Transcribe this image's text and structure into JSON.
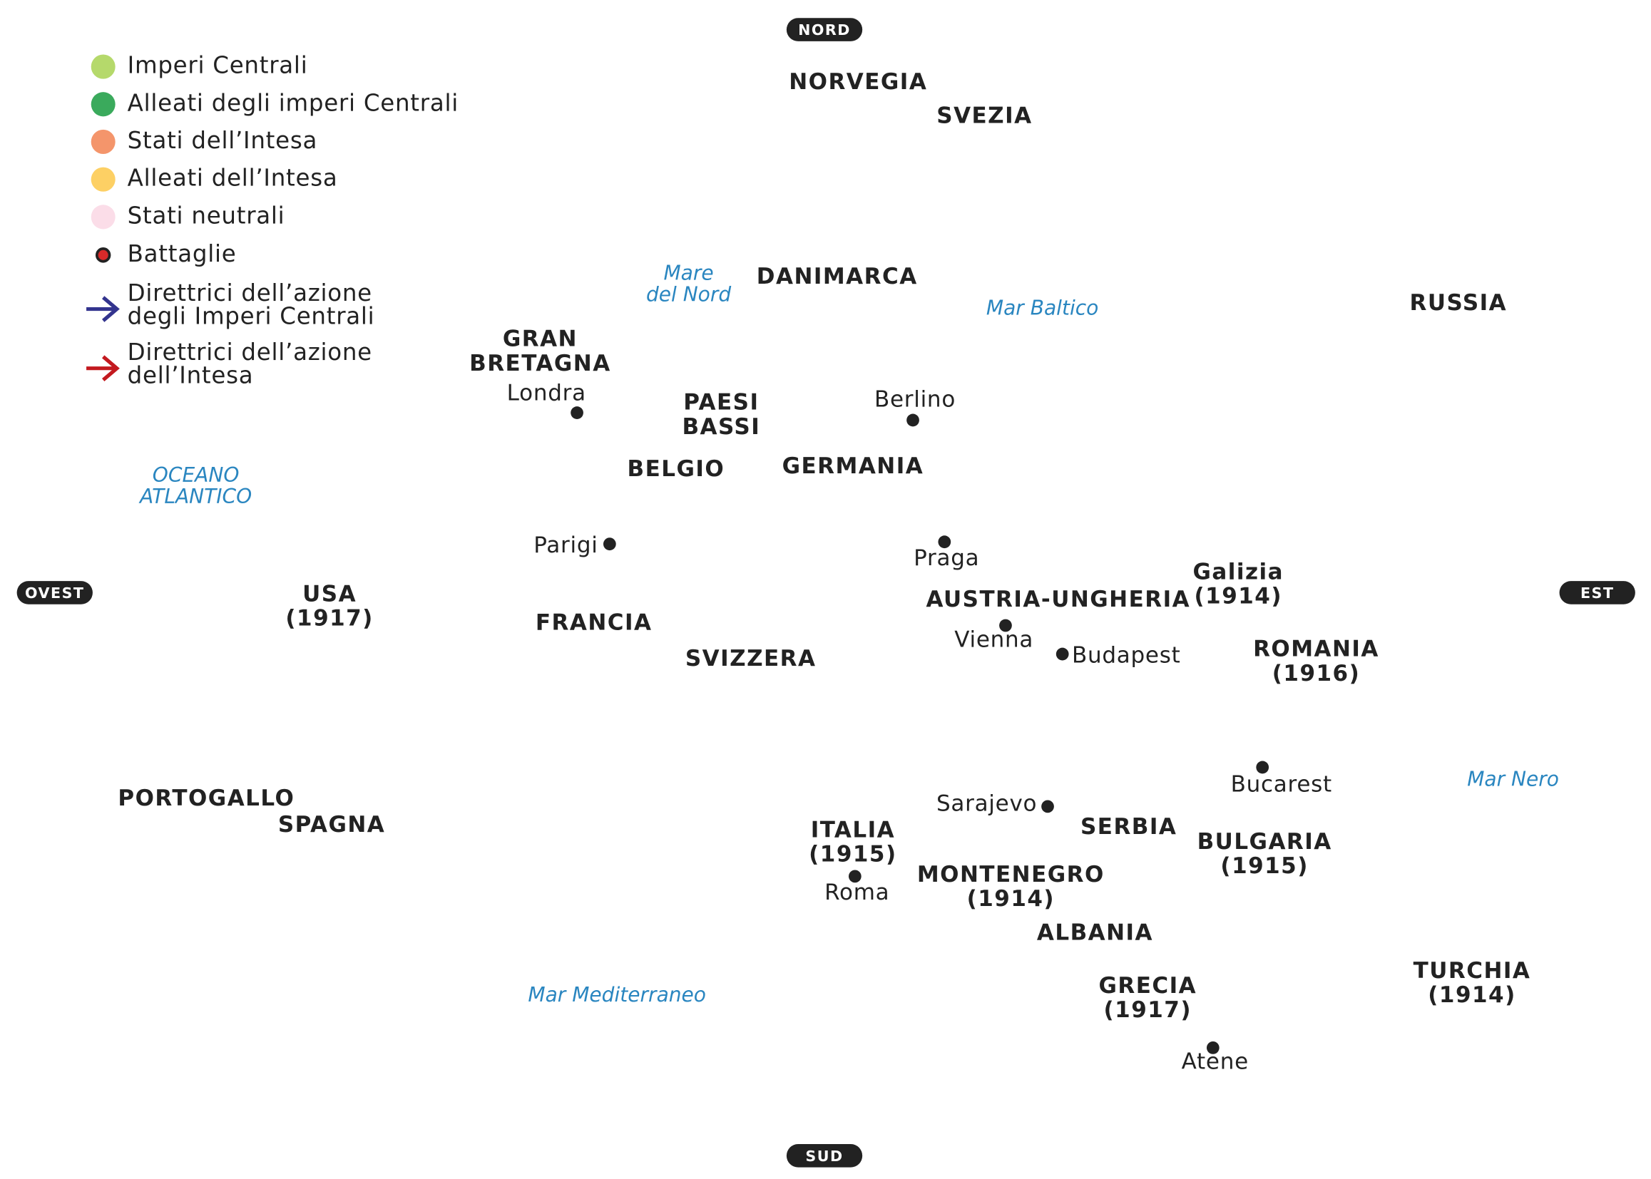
{
  "legend": {
    "items": [
      {
        "label": "Imperi Centrali",
        "color": "#b5d96b"
      },
      {
        "label": "Alleati degli imperi Centrali",
        "color": "#3aaa5c"
      },
      {
        "label": "Stati dell’Intesa",
        "color": "#f4956b"
      },
      {
        "label": "Alleati dell’Intesa",
        "color": "#fdd064"
      },
      {
        "label": "Stati neutrali",
        "color": "#fbdde8"
      }
    ],
    "battles": "Battaglie",
    "arrows": [
      {
        "lines": [
          "Direttrici dell’azione",
          "degli Imperi Centrali"
        ],
        "color": "#33348e"
      },
      {
        "lines": [
          "Direttrici dell’azione",
          "dell’Intesa"
        ],
        "color": "#c3191f"
      }
    ]
  },
  "compass": [
    "NORD",
    "SUD",
    "OVEST",
    "EST"
  ],
  "countries": [
    {
      "lines": [
        "NORVEGIA"
      ]
    },
    {
      "lines": [
        "SVEZIA"
      ]
    },
    {
      "lines": [
        "DANIMARCA"
      ]
    },
    {
      "lines": [
        "RUSSIA"
      ]
    },
    {
      "lines": [
        "GRAN",
        "BRETAGNA"
      ]
    },
    {
      "lines": [
        "PAESI",
        "BASSI"
      ]
    },
    {
      "lines": [
        "BELGIO"
      ]
    },
    {
      "lines": [
        "GERMANIA"
      ]
    },
    {
      "lines": [
        "USA",
        "(1917)"
      ]
    },
    {
      "lines": [
        "FRANCIA"
      ]
    },
    {
      "lines": [
        "SVIZZERA"
      ]
    },
    {
      "lines": [
        "AUSTRIA-UNGHERIA"
      ]
    },
    {
      "lines": [
        "Galizia",
        "(1914)"
      ]
    },
    {
      "lines": [
        "ROMANIA",
        "(1916)"
      ]
    },
    {
      "lines": [
        "PORTOGALLO"
      ]
    },
    {
      "lines": [
        "SPAGNA"
      ]
    },
    {
      "lines": [
        "ITALIA",
        "(1915)"
      ]
    },
    {
      "lines": [
        "SERBIA"
      ]
    },
    {
      "lines": [
        "BULGARIA",
        "(1915)"
      ]
    },
    {
      "lines": [
        "MONTENEGRO",
        "(1914)"
      ]
    },
    {
      "lines": [
        "ALBANIA"
      ]
    },
    {
      "lines": [
        "GRECIA",
        "(1917)"
      ]
    },
    {
      "lines": [
        "TURCHIA",
        "(1914)"
      ]
    }
  ],
  "cities": [
    "Londra",
    "Berlino",
    "Parigi",
    "Praga",
    "Vienna",
    "Budapest",
    "Bucarest",
    "Sarajevo",
    "Roma",
    "Atene"
  ],
  "seas": [
    {
      "lines": [
        "Mare",
        "del Nord"
      ]
    },
    {
      "lines": [
        "Mar Baltico"
      ]
    },
    {
      "lines": [
        "OCEANO",
        "ATLANTICO"
      ]
    },
    {
      "lines": [
        "Mar Nero"
      ]
    },
    {
      "lines": [
        "Mar Mediterraneo"
      ]
    }
  ]
}
